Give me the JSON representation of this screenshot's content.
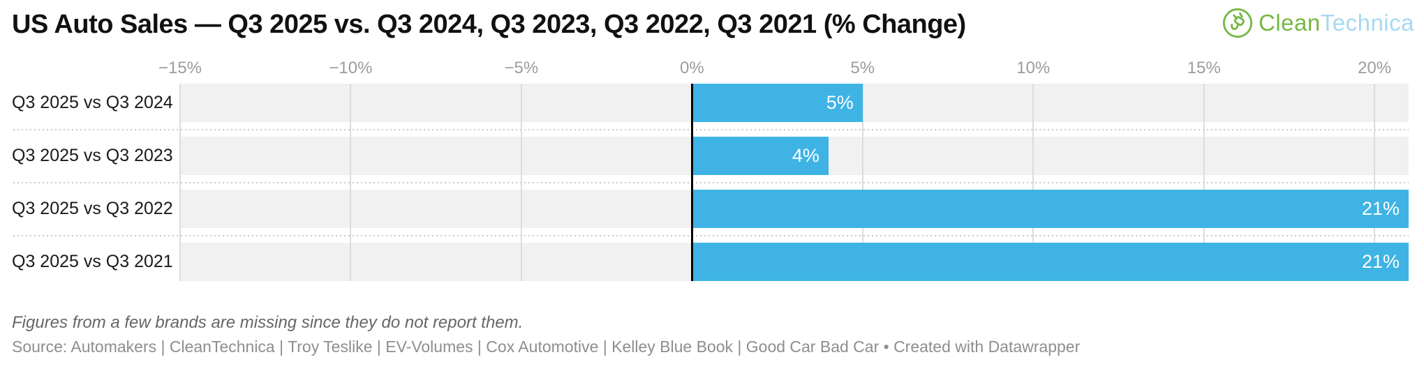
{
  "header": {
    "title": "US Auto Sales — Q3 2025 vs. Q3 2024, Q3 2023, Q3 2022, Q3 2021 (% Change)",
    "logo": {
      "part1": "Clean",
      "part2": "Technica",
      "green": "#76b843",
      "light_blue": "#a6d9f1"
    }
  },
  "chart_data": {
    "type": "bar",
    "orientation": "horizontal",
    "title": "US Auto Sales — Q3 2025 vs. Q3 2024, Q3 2023, Q3 2022, Q3 2021 (% Change)",
    "categories": [
      "Q3 2025 vs Q3 2024",
      "Q3 2025 vs Q3 2023",
      "Q3 2025 vs Q3 2022",
      "Q3 2025 vs Q3 2021"
    ],
    "values": [
      5,
      4,
      21,
      21
    ],
    "value_labels": [
      "5%",
      "4%",
      "21%",
      "21%"
    ],
    "xlabel": "",
    "ylabel": "",
    "xlim": [
      -15,
      21
    ],
    "x_ticks": [
      {
        "label": "−15%",
        "value": -15
      },
      {
        "label": "−10%",
        "value": -10
      },
      {
        "label": "−5%",
        "value": -5
      },
      {
        "label": "0%",
        "value": 0
      },
      {
        "label": "5%",
        "value": 5
      },
      {
        "label": "10%",
        "value": 10
      },
      {
        "label": "15%",
        "value": 15
      },
      {
        "label": "20%",
        "value": 20
      }
    ],
    "grid": true,
    "legend": "none",
    "bar_color": "#3fb4e4",
    "track_color": "#f1f1f1",
    "grid_color": "#dcdcdc",
    "zero_line_color": "#000000"
  },
  "footer": {
    "note": "Figures from a few brands are missing since they do not report them.",
    "source": "Source: Automakers | CleanTechnica | Troy Teslike | EV-Volumes | Cox Automotive | Kelley Blue Book | Good Car Bad Car • Created with Datawrapper"
  }
}
